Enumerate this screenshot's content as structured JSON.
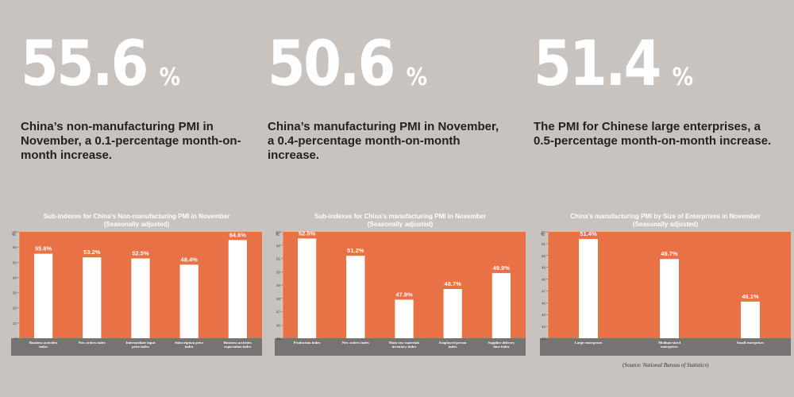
{
  "stats": [
    {
      "value": "55.6",
      "unit": "%",
      "desc": "China’s non-manufacturing PMI in November, a 0.1-percentage month-on-month increase."
    },
    {
      "value": "50.6",
      "unit": "%",
      "desc": "China’s manufacturing PMI in November, a 0.4-percentage month-on-month increase."
    },
    {
      "value": "51.4",
      "unit": "%",
      "desc": "The PMI for Chinese large enterprises, a 0.5-percentage month-on-month increase."
    }
  ],
  "source": {
    "prefix": "(Source: ",
    "name": "National Bureau of Statistics",
    "suffix": ")"
  },
  "colors": {
    "background": "#c9c3c0",
    "plot": "#e87145",
    "bar": "#ffffff",
    "axis_band": "#777372"
  },
  "chart_data": [
    {
      "type": "bar",
      "title": "Sub-indexes for China’s Non-manufacturing PMI in November",
      "subtitle": "(Seasonally adjusted)",
      "ylabel": "%",
      "ylim": [
        0,
        70
      ],
      "yticks": [
        0,
        10,
        20,
        30,
        40,
        50,
        60,
        70
      ],
      "categories": [
        "Business activities index",
        "New orders index",
        "Intermediate input price index",
        "Subscription price index",
        "Business activities expectation index"
      ],
      "values": [
        55.6,
        53.2,
        52.5,
        48.4,
        64.6
      ],
      "labels": [
        "55.6%",
        "53.2%",
        "52.5%",
        "48.4%",
        "64.6%"
      ]
    },
    {
      "type": "bar",
      "title": "Sub-indexes for China’s manufacturing PMI in November",
      "subtitle": "(Seasonally adjusted)",
      "ylabel": "%",
      "ylim": [
        45,
        53
      ],
      "yticks": [
        45,
        46,
        47,
        48,
        49,
        50,
        51,
        52,
        53
      ],
      "categories": [
        "Production index",
        "New orders index",
        "Main raw materials inventory index",
        "Employed person index",
        "Supplier delivery time index"
      ],
      "values": [
        52.5,
        51.2,
        47.9,
        48.7,
        49.9
      ],
      "labels": [
        "52.5%",
        "51.2%",
        "47.9%",
        "48.7%",
        "49.9%"
      ]
    },
    {
      "type": "bar",
      "title": "China’s manufacturing PMI by Size of Enterprises in November",
      "subtitle": "(Seasonally adjusted)",
      "ylabel": "%",
      "ylim": [
        43,
        52
      ],
      "yticks": [
        43,
        44,
        45,
        46,
        47,
        48,
        49,
        50,
        51,
        52
      ],
      "categories": [
        "Large enterprises",
        "Medium-sized enterprises",
        "Small enterprises"
      ],
      "values": [
        51.4,
        49.7,
        46.1
      ],
      "labels": [
        "51.4%",
        "49.7%",
        "46.1%"
      ]
    }
  ]
}
